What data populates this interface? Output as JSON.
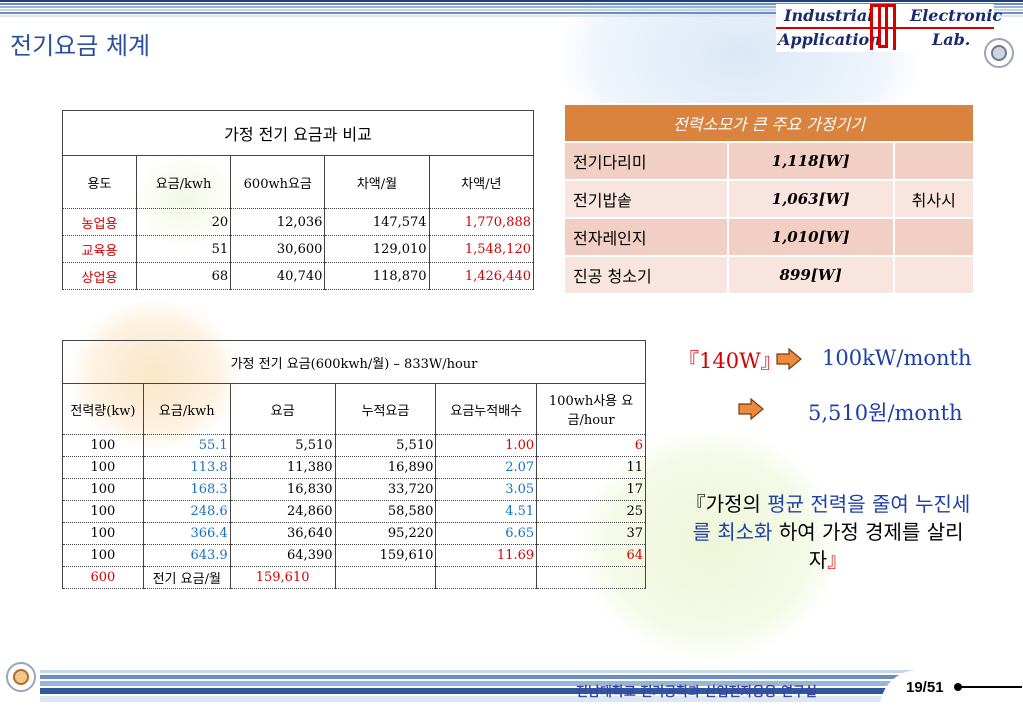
{
  "header": {
    "title": "전기요금 체계",
    "logo": {
      "line1_left": "Industrial",
      "line1_right": "Electronic",
      "line2_left": "Application",
      "line2_right": "Lab."
    }
  },
  "table1": {
    "caption": "가정 전기 요금과 비교",
    "headers": [
      "용도",
      "요금/kwh",
      "600wh요금",
      "차액/월",
      "차액/년"
    ],
    "rows": [
      [
        "농업용",
        "20",
        "12,036",
        "147,574",
        "1,770,888"
      ],
      [
        "교육용",
        "51",
        "30,600",
        "129,010",
        "1,548,120"
      ],
      [
        "상업용",
        "68",
        "40,740",
        "118,870",
        "1,426,440"
      ]
    ]
  },
  "table2": {
    "caption": "가정 전기 요금(600kwh/월) – 833W/hour",
    "headers": [
      "전력량(kw)",
      "요금/kwh",
      "요금",
      "누적요금",
      "요금누적배수",
      "100wh사용 요금/hour"
    ],
    "rows": [
      [
        "100",
        "55.1",
        "5,510",
        "5,510",
        "1.00",
        "6"
      ],
      [
        "100",
        "113.8",
        "11,380",
        "16,890",
        "2.07",
        "11"
      ],
      [
        "100",
        "168.3",
        "16,830",
        "33,720",
        "3.05",
        "17"
      ],
      [
        "100",
        "248.6",
        "24,860",
        "58,580",
        "4.51",
        "25"
      ],
      [
        "100",
        "366.4",
        "36,640",
        "95,220",
        "6.65",
        "37"
      ],
      [
        "100",
        "643.9",
        "64,390",
        "159,610",
        "11.69",
        "64"
      ]
    ],
    "total": {
      "kw": "600",
      "label": "전기 요금/월",
      "value": "159,610"
    }
  },
  "table3": {
    "caption": "전력소모가 큰 주요 가정기기",
    "rows": [
      {
        "name": "전기다리미",
        "watt": "1,118[W]"
      },
      {
        "name": "전기밥솥",
        "watt": "1,063[W]"
      },
      {
        "name": "전자레인지",
        "watt": "1,010[W]"
      },
      {
        "name": "진공 청소기",
        "watt": "899[W]"
      }
    ],
    "group_label": "취사시"
  },
  "right": {
    "line1_power": "140W",
    "line1_result": "100kW/month",
    "line2_result": "5,510원/month",
    "slogan_p1": "『가정의 ",
    "slogan_p2": "평균 전력을 줄여 누진세를  최소화",
    "slogan_p3": " 하여 가정 경제를 살리자",
    "slogan_p4": "』",
    "quote_open": "『",
    "quote_close": "』"
  },
  "footer": {
    "org": "전남대학교 전기공학과 산업전자응용 연구실",
    "page": "19/51"
  },
  "colors": {
    "title": "#2a4f9e",
    "header_cell": "#d9833f",
    "accent_red": "#d40000",
    "accent_blue": "#1a6fc4"
  }
}
